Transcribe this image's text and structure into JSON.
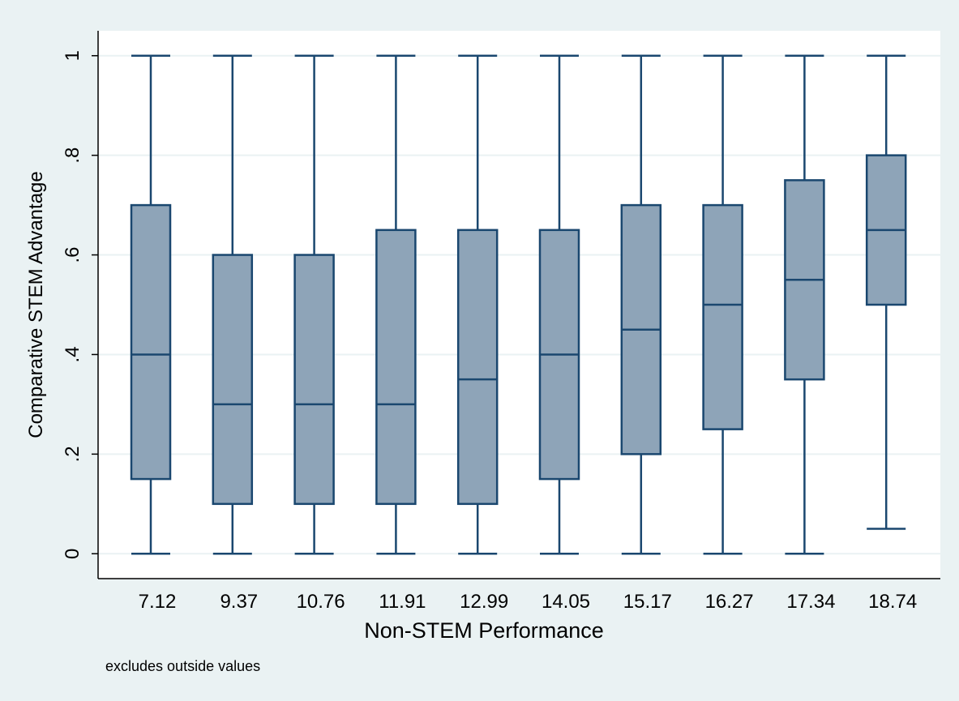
{
  "chart_data": {
    "type": "box",
    "x_label": "Non-STEM Performance",
    "y_label": "Comparative STEM Advantage",
    "note": "excludes outside values",
    "categories": [
      "7.12",
      "9.37",
      "10.76",
      "11.91",
      "12.99",
      "14.05",
      "15.17",
      "16.27",
      "17.34",
      "18.74"
    ],
    "min": [
      0,
      0,
      0,
      0,
      0,
      0,
      0,
      0,
      0,
      0.05
    ],
    "q1": [
      0.15,
      0.1,
      0.1,
      0.1,
      0.1,
      0.15,
      0.2,
      0.25,
      0.35,
      0.5
    ],
    "median": [
      0.4,
      0.3,
      0.3,
      0.3,
      0.35,
      0.4,
      0.45,
      0.5,
      0.55,
      0.65
    ],
    "q3": [
      0.7,
      0.6,
      0.6,
      0.65,
      0.65,
      0.65,
      0.7,
      0.7,
      0.75,
      0.8
    ],
    "max": [
      1,
      1,
      1,
      1,
      1,
      1,
      1,
      1,
      1,
      1
    ],
    "color": "#8ea4b8",
    "edge_color": "#1a476f",
    "ylim": [
      -0.05,
      1.05
    ],
    "yticks": [
      0,
      {
        "value": 0.2,
        "label": ".2"
      },
      {
        "value": 0.4,
        "label": ".4"
      },
      {
        "value": 0.6,
        "label": ".6"
      },
      {
        "value": 0.8,
        "label": ".8"
      },
      1
    ],
    "grid": true
  }
}
